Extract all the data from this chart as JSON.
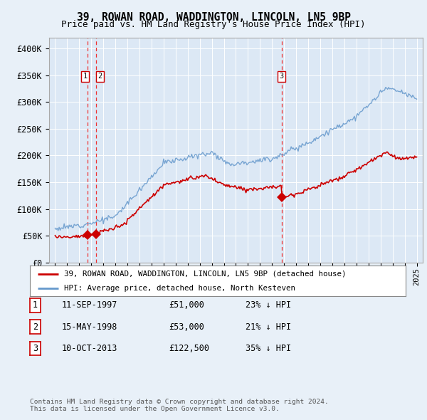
{
  "title": "39, ROWAN ROAD, WADDINGTON, LINCOLN, LN5 9BP",
  "subtitle": "Price paid vs. HM Land Registry's House Price Index (HPI)",
  "sales": [
    {
      "date_num": 1997.69,
      "price": 51000,
      "label": "1"
    },
    {
      "date_num": 1998.37,
      "price": 53000,
      "label": "2"
    },
    {
      "date_num": 2013.78,
      "price": 122500,
      "label": "3"
    }
  ],
  "vlines": [
    1997.69,
    1998.37,
    2013.78
  ],
  "legend_entries": [
    "39, ROWAN ROAD, WADDINGTON, LINCOLN, LN5 9BP (detached house)",
    "HPI: Average price, detached house, North Kesteven"
  ],
  "table_rows": [
    [
      "1",
      "11-SEP-1997",
      "£51,000",
      "23% ↓ HPI"
    ],
    [
      "2",
      "15-MAY-1998",
      "£53,000",
      "21% ↓ HPI"
    ],
    [
      "3",
      "10-OCT-2013",
      "£122,500",
      "35% ↓ HPI"
    ]
  ],
  "footnote": "Contains HM Land Registry data © Crown copyright and database right 2024.\nThis data is licensed under the Open Government Licence v3.0.",
  "ylim": [
    0,
    420000
  ],
  "yticks": [
    0,
    50000,
    100000,
    150000,
    200000,
    250000,
    300000,
    350000,
    400000
  ],
  "ytick_labels": [
    "£0",
    "£50K",
    "£100K",
    "£150K",
    "£200K",
    "£250K",
    "£300K",
    "£350K",
    "£400K"
  ],
  "xlim_start": 1994.5,
  "xlim_end": 2025.5,
  "background_color": "#e8f0f8",
  "plot_bg_color": "#dce8f5",
  "grid_color": "#ffffff",
  "red_line_color": "#cc0000",
  "blue_line_color": "#6699cc",
  "vline_color": "#ee3333",
  "sale_marker_color": "#cc0000"
}
